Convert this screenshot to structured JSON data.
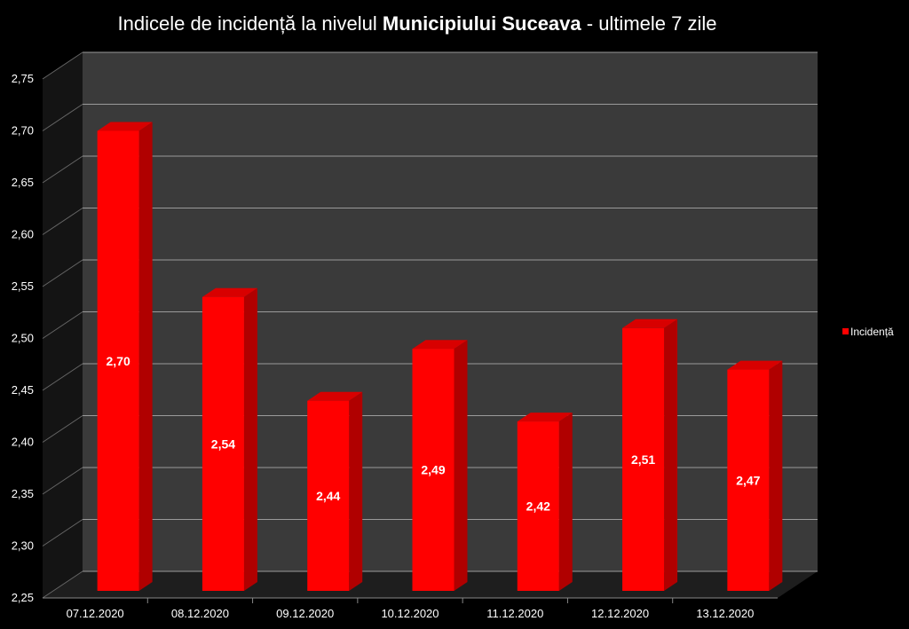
{
  "chart_data": {
    "type": "bar",
    "title_prefix": "Indicele de incidență la nivelul ",
    "title_bold": "Municipiului Suceava",
    "title_suffix": " - ultimele 7 zile",
    "categories": [
      "07.12.2020",
      "08.12.2020",
      "09.12.2020",
      "10.12.2020",
      "11.12.2020",
      "12.12.2020",
      "13.12.2020"
    ],
    "series": [
      {
        "name": "Incidență",
        "values": [
          2.7,
          2.54,
          2.44,
          2.49,
          2.42,
          2.51,
          2.47
        ],
        "labels": [
          "2,70",
          "2,54",
          "2,44",
          "2,49",
          "2,42",
          "2,51",
          "2,47"
        ]
      }
    ],
    "ylim": [
      2.25,
      2.75
    ],
    "yticks": [
      "2,25",
      "2,30",
      "2,35",
      "2,40",
      "2,45",
      "2,50",
      "2,55",
      "2,60",
      "2,65",
      "2,70",
      "2,75"
    ],
    "grid": true,
    "legend_position": "right",
    "colors": {
      "bar": "#ff0000",
      "bar_side": "#b00000",
      "bar_top": "#d80000",
      "wall": "#3a3a3a",
      "grid": "#9a9a9a"
    }
  }
}
